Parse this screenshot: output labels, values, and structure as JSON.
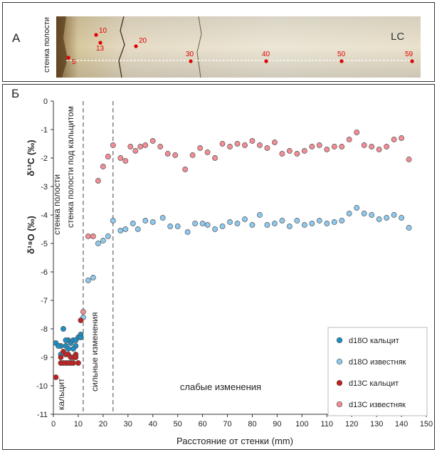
{
  "panel_a": {
    "letter": "А",
    "rotated_label": "стенка полости",
    "sample_label": "LC",
    "sample_points": [
      {
        "label": "5"
      },
      {
        "label": "10"
      },
      {
        "label": "13"
      },
      {
        "label": "20"
      },
      {
        "label": "30"
      },
      {
        "label": "40"
      },
      {
        "label": "50"
      },
      {
        "label": "59"
      }
    ]
  },
  "panel_b": {
    "letter": "Б"
  },
  "colors": {
    "d18o_calcite": "#1a8fc4",
    "d18o_limestone": "#8ec9ef",
    "d13c_calcite": "#c31f1f",
    "d13c_limestone": "#f28d95"
  },
  "chart_data": {
    "type": "scatter",
    "xlabel": "Расстояние от стенки (mm)",
    "ylabel_top": "δ¹³C (‰)",
    "ylabel_bottom": "δ¹⁸O (‰)",
    "xlim": [
      0,
      150
    ],
    "ylim": [
      -11,
      0
    ],
    "x_ticks": [
      0,
      10,
      20,
      30,
      40,
      50,
      60,
      70,
      80,
      90,
      100,
      110,
      120,
      130,
      140,
      150
    ],
    "y_ticks": [
      0,
      -1,
      -2,
      -3,
      -4,
      -5,
      -6,
      -7,
      -8,
      -9,
      -10,
      -11
    ],
    "grid": false,
    "legend_position": "bottom-right",
    "zone_boundaries": [
      12,
      24
    ],
    "zone_labels": {
      "wall": "стенка полости",
      "wall_under": "стенка полости под кальцитом",
      "calcite": "кальцит",
      "strong": "сильные изменения",
      "weak": "слабые изменения"
    },
    "series": [
      {
        "name": "d18O кальцит",
        "color_key": "d18o_calcite",
        "x": [
          1,
          3,
          4,
          5,
          6,
          7,
          8,
          9,
          10,
          11,
          2,
          5,
          8,
          11,
          3,
          6,
          9
        ],
        "y": [
          -8.5,
          -8.6,
          -8.0,
          -8.6,
          -8.4,
          -8.5,
          -8.4,
          -8.6,
          -8.3,
          -8.2,
          -8.6,
          -8.4,
          -8.7,
          -8.3,
          -8.9,
          -8.7,
          -8.4
        ]
      },
      {
        "name": "d18O известняк",
        "color_key": "d18o_limestone",
        "x": [
          12,
          14,
          16,
          18,
          20,
          22,
          24,
          27,
          29,
          32,
          34,
          37,
          40,
          44,
          47,
          50,
          54,
          57,
          60,
          62,
          65,
          68,
          71,
          74,
          77,
          80,
          83,
          86,
          89,
          92,
          95,
          98,
          101,
          104,
          107,
          110,
          113,
          116,
          119,
          122,
          125,
          128,
          131,
          134,
          137,
          140,
          143
        ],
        "y": [
          -7.6,
          -6.3,
          -6.2,
          -5.0,
          -4.9,
          -4.75,
          -4.2,
          -4.55,
          -4.5,
          -4.3,
          -4.5,
          -4.2,
          -4.25,
          -4.1,
          -4.4,
          -4.4,
          -4.6,
          -4.3,
          -4.3,
          -4.35,
          -4.5,
          -4.4,
          -4.25,
          -4.3,
          -4.15,
          -4.35,
          -4.0,
          -4.35,
          -4.3,
          -4.2,
          -4.4,
          -4.2,
          -4.35,
          -4.3,
          -4.2,
          -4.3,
          -4.25,
          -4.2,
          -3.95,
          -3.75,
          -3.95,
          -4.0,
          -4.15,
          -4.1,
          -4.0,
          -4.1,
          -4.45
        ]
      },
      {
        "name": "d13C кальцит",
        "color_key": "d13c_calcite",
        "x": [
          1,
          3,
          4,
          5,
          6,
          7,
          8,
          9,
          10,
          11,
          3,
          5,
          7,
          9,
          4,
          6,
          8
        ],
        "y": [
          -9.7,
          -9.0,
          -9.2,
          -8.9,
          -9.2,
          -9.0,
          -9.2,
          -8.9,
          -9.2,
          -7.7,
          -9.2,
          -9.2,
          -9.2,
          -9.0,
          -8.8,
          -8.9,
          -9.0
        ]
      },
      {
        "name": "d13C известняк",
        "color_key": "d13c_limestone",
        "x": [
          12,
          14,
          16,
          18,
          20,
          22,
          24,
          27,
          29,
          31,
          33,
          35,
          37,
          40,
          43,
          46,
          49,
          53,
          56,
          59,
          62,
          65,
          68,
          71,
          74,
          77,
          80,
          83,
          86,
          89,
          92,
          95,
          98,
          101,
          104,
          107,
          110,
          113,
          116,
          119,
          122,
          125,
          128,
          131,
          134,
          137,
          140,
          143
        ],
        "y": [
          -7.4,
          -4.75,
          -4.75,
          -2.8,
          -2.3,
          -1.95,
          -1.55,
          -2.0,
          -2.1,
          -1.6,
          -1.75,
          -1.6,
          -1.55,
          -1.4,
          -1.6,
          -1.85,
          -1.9,
          -2.4,
          -1.9,
          -1.65,
          -1.8,
          -2.0,
          -1.5,
          -1.6,
          -1.5,
          -1.55,
          -1.4,
          -1.55,
          -1.65,
          -1.45,
          -1.85,
          -1.75,
          -1.85,
          -1.75,
          -1.6,
          -1.55,
          -1.7,
          -1.6,
          -1.6,
          -1.35,
          -1.1,
          -1.55,
          -1.6,
          -1.7,
          -1.6,
          -1.35,
          -1.3,
          -2.05
        ]
      }
    ]
  }
}
